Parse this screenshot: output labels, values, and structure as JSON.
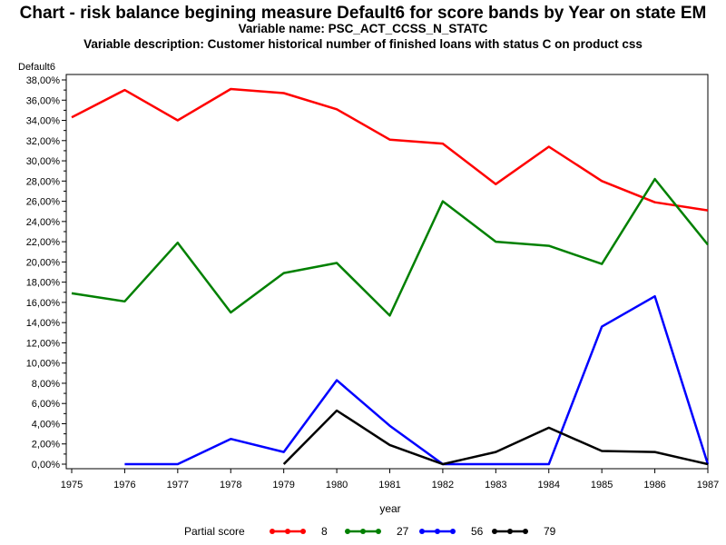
{
  "header": {
    "title": "Chart - risk balance begining measure Default6 for score bands by Year on state EM",
    "subtitle_variable": "Variable name: PSC_ACT_CCSS_N_STATC",
    "subtitle_description": "Variable description: Customer historical number of finished loans with status C on product css"
  },
  "chart_data": {
    "type": "line",
    "title": "Chart - risk balance begining measure Default6 for score bands by Year on state EM",
    "xlabel": "year",
    "ylabel": "Default6",
    "x": [
      1975,
      1976,
      1977,
      1978,
      1979,
      1980,
      1981,
      1982,
      1983,
      1984,
      1985,
      1986,
      1987
    ],
    "ylim": [
      0,
      38
    ],
    "yticks": [
      "0,00%",
      "2,00%",
      "4,00%",
      "6,00%",
      "8,00%",
      "10,00%",
      "12,00%",
      "14,00%",
      "16,00%",
      "18,00%",
      "20,00%",
      "22,00%",
      "24,00%",
      "26,00%",
      "28,00%",
      "30,00%",
      "32,00%",
      "34,00%",
      "36,00%",
      "38,00%"
    ],
    "legend_title": "Partial score",
    "legend_position": "bottom",
    "grid": false,
    "series": [
      {
        "name": "8",
        "color": "#ff0000",
        "values": [
          34.3,
          37.0,
          34.0,
          37.1,
          36.7,
          35.1,
          32.1,
          31.7,
          27.7,
          31.4,
          28.0,
          25.9,
          25.1
        ]
      },
      {
        "name": "27",
        "color": "#008000",
        "values": [
          16.9,
          16.1,
          21.9,
          15.0,
          18.9,
          19.9,
          14.7,
          26.0,
          22.0,
          21.6,
          19.8,
          28.2,
          21.7
        ]
      },
      {
        "name": "56",
        "color": "#0000ff",
        "values": [
          null,
          0.0,
          0.0,
          2.5,
          1.2,
          8.3,
          3.8,
          0.0,
          0.0,
          0.0,
          13.6,
          16.6,
          0.0
        ]
      },
      {
        "name": "79",
        "color": "#000000",
        "values": [
          null,
          null,
          null,
          null,
          0.0,
          5.3,
          1.9,
          0.0,
          1.2,
          3.6,
          1.3,
          1.2,
          0.0
        ]
      }
    ]
  }
}
